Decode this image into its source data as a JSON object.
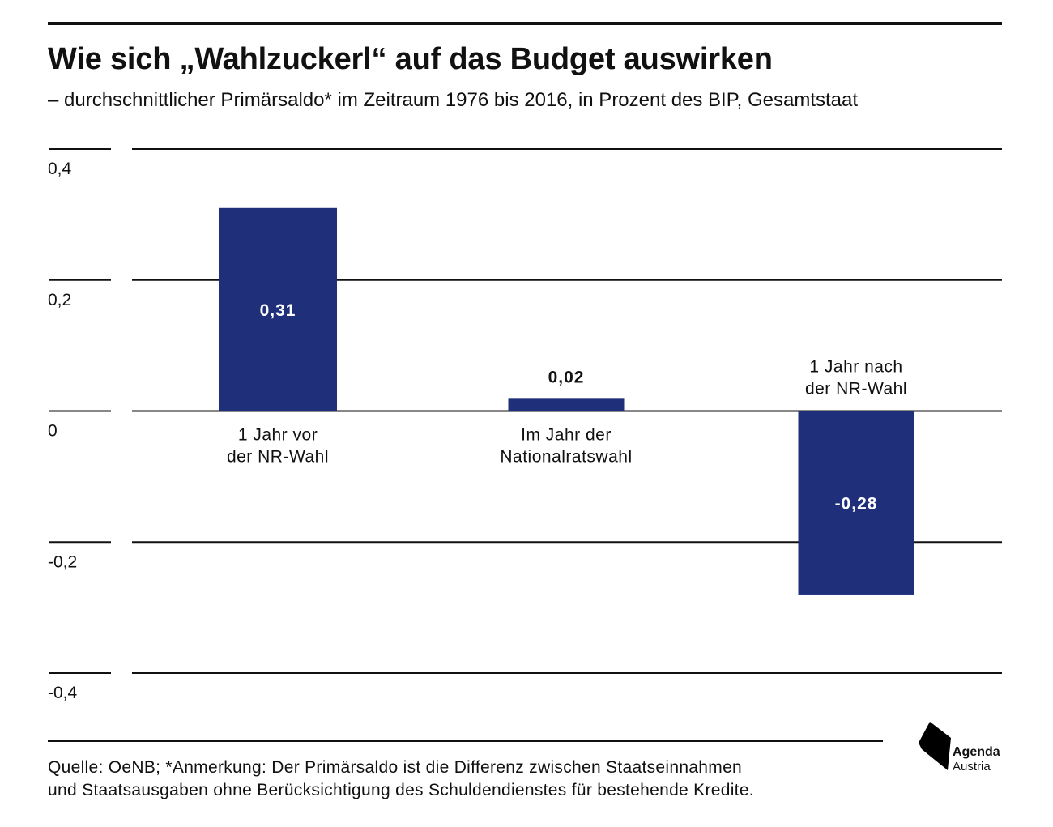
{
  "header": {
    "title": "Wie sich „Wahlzuckerl“ auf das Budget auswirken",
    "subtitle": "– durchschnittlicher Primärsaldo* im Zeitraum 1976 bis 2016, in Prozent des BIP, Gesamtstaat"
  },
  "chart_data": {
    "type": "bar",
    "categories": [
      "1 Jahr vor der NR-Wahl",
      "Im Jahr der Nationalratswahl",
      "1 Jahr nach der NR-Wahl"
    ],
    "category_lines": [
      [
        "1 Jahr vor",
        "der NR-Wahl"
      ],
      [
        "Im Jahr der",
        "Nationalratswahl"
      ],
      [
        "1 Jahr nach",
        "der NR-Wahl"
      ]
    ],
    "values": [
      0.31,
      0.02,
      -0.28
    ],
    "value_labels": [
      "0,31",
      "0,02",
      "-0,28"
    ],
    "ylim": [
      -0.4,
      0.4
    ],
    "yticks": [
      0.4,
      0.2,
      0,
      -0.2,
      -0.4
    ],
    "ytick_labels": [
      "0,4",
      "0,2",
      "0",
      "-0,2",
      "-0,4"
    ],
    "grid": true,
    "bar_color": "#1f2f7a"
  },
  "footer": {
    "source_line1": "Quelle:  OeNB; *Anmerkung: Der Primärsaldo ist die Differenz zwischen Staatseinnahmen",
    "source_line2": "und Staatsausgaben ohne Berücksichtigung des Schuldendienstes für bestehende Kredite."
  },
  "logo": {
    "word1": "Agenda",
    "word2": "Austria",
    "icon": "agenda-austria-logo"
  }
}
